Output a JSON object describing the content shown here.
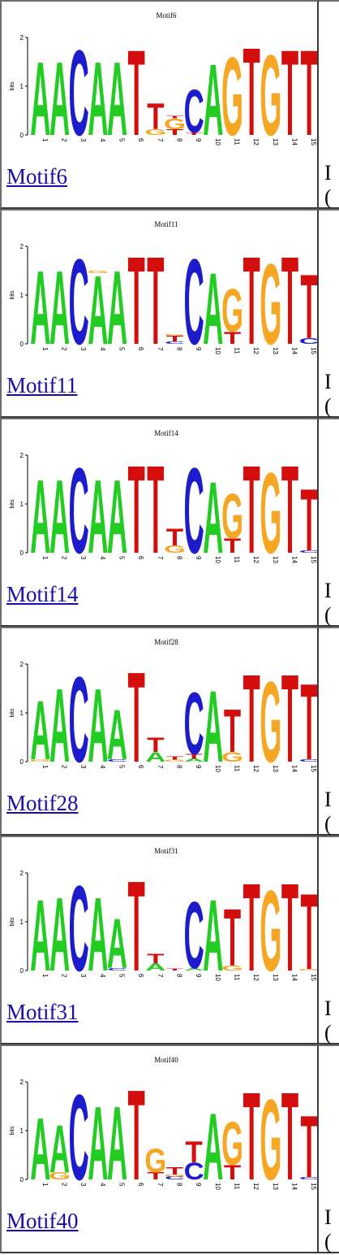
{
  "rows": [
    {
      "id": "motif6",
      "logo_title": "Motif6",
      "link_text": "Motif6",
      "letters": [
        [
          {
            "b": "A",
            "h": 1.55
          }
        ],
        [
          {
            "b": "A",
            "h": 1.55
          }
        ],
        [
          {
            "b": "C",
            "h": 1.8
          }
        ],
        [
          {
            "b": "A",
            "h": 1.55
          }
        ],
        [
          {
            "b": "A",
            "h": 1.55
          }
        ],
        [
          {
            "b": "T",
            "h": 1.8
          }
        ],
        [
          {
            "b": "G",
            "h": 0.12
          },
          {
            "b": "T",
            "h": 0.55
          }
        ],
        [
          {
            "b": "T",
            "h": 0.12
          },
          {
            "b": "G",
            "h": 0.22
          },
          {
            "b": "T",
            "h": 0.05
          }
        ],
        [
          {
            "b": "T",
            "h": 0.05
          },
          {
            "b": "C",
            "h": 0.9
          }
        ],
        [
          {
            "b": "A",
            "h": 1.5
          }
        ],
        [
          {
            "b": "G",
            "h": 1.65
          }
        ],
        [
          {
            "b": "T",
            "h": 1.85
          }
        ],
        [
          {
            "b": "G",
            "h": 1.7
          }
        ],
        [
          {
            "b": "T",
            "h": 1.8
          }
        ],
        [
          {
            "b": "T",
            "h": 1.8
          }
        ]
      ]
    },
    {
      "id": "motif11",
      "logo_title": "Motif11",
      "link_text": "Motif11",
      "letters": [
        [
          {
            "b": "A",
            "h": 1.55
          }
        ],
        [
          {
            "b": "A",
            "h": 1.55
          }
        ],
        [
          {
            "b": "C",
            "h": 1.8
          }
        ],
        [
          {
            "b": "A",
            "h": 1.45
          },
          {
            "b": "G",
            "h": 0.05
          }
        ],
        [
          {
            "b": "A",
            "h": 1.55
          }
        ],
        [
          {
            "b": "T",
            "h": 1.85
          }
        ],
        [
          {
            "b": "T",
            "h": 1.85
          }
        ],
        [
          {
            "b": "C",
            "h": 0.05
          },
          {
            "b": "T",
            "h": 0.12
          },
          {
            "b": "G",
            "h": 0.03
          }
        ],
        [
          {
            "b": "C",
            "h": 1.8
          }
        ],
        [
          {
            "b": "A",
            "h": 1.5
          }
        ],
        [
          {
            "b": "T",
            "h": 0.25
          },
          {
            "b": "G",
            "h": 0.9
          }
        ],
        [
          {
            "b": "T",
            "h": 1.85
          }
        ],
        [
          {
            "b": "G",
            "h": 1.7
          }
        ],
        [
          {
            "b": "T",
            "h": 1.85
          }
        ],
        [
          {
            "b": "C",
            "h": 0.12
          },
          {
            "b": "T",
            "h": 1.35
          }
        ]
      ]
    },
    {
      "id": "motif14",
      "logo_title": "Motif14",
      "link_text": "Motif14",
      "letters": [
        [
          {
            "b": "A",
            "h": 1.55
          }
        ],
        [
          {
            "b": "A",
            "h": 1.55
          }
        ],
        [
          {
            "b": "C",
            "h": 1.8
          }
        ],
        [
          {
            "b": "A",
            "h": 1.55
          }
        ],
        [
          {
            "b": "A",
            "h": 1.55
          }
        ],
        [
          {
            "b": "T",
            "h": 1.85
          }
        ],
        [
          {
            "b": "T",
            "h": 1.85
          }
        ],
        [
          {
            "b": "G",
            "h": 0.15
          },
          {
            "b": "T",
            "h": 0.35
          }
        ],
        [
          {
            "b": "C",
            "h": 1.8
          }
        ],
        [
          {
            "b": "A",
            "h": 1.5
          }
        ],
        [
          {
            "b": "T",
            "h": 0.3
          },
          {
            "b": "G",
            "h": 0.95
          }
        ],
        [
          {
            "b": "T",
            "h": 1.85
          }
        ],
        [
          {
            "b": "G",
            "h": 1.7
          }
        ],
        [
          {
            "b": "T",
            "h": 1.85
          }
        ],
        [
          {
            "b": "C",
            "h": 0.05
          },
          {
            "b": "T",
            "h": 1.3
          }
        ]
      ]
    },
    {
      "id": "motif28",
      "logo_title": "Motif28",
      "link_text": "Motif28",
      "letters": [
        [
          {
            "b": "G",
            "h": 0.04
          },
          {
            "b": "A",
            "h": 1.25
          }
        ],
        [
          {
            "b": "A",
            "h": 1.55
          }
        ],
        [
          {
            "b": "C",
            "h": 1.8
          }
        ],
        [
          {
            "b": "A",
            "h": 1.55
          }
        ],
        [
          {
            "b": "C",
            "h": 0.05
          },
          {
            "b": "A",
            "h": 1.05
          }
        ],
        [
          {
            "b": "T",
            "h": 1.9
          }
        ],
        [
          {
            "b": "A",
            "h": 0.2
          },
          {
            "b": "T",
            "h": 0.3
          }
        ],
        [
          {
            "b": "G",
            "h": 0.04
          },
          {
            "b": "T",
            "h": 0.06
          }
        ],
        [
          {
            "b": "A",
            "h": 0.06
          },
          {
            "b": "T",
            "h": 0.1
          },
          {
            "b": "C",
            "h": 1.3
          }
        ],
        [
          {
            "b": "A",
            "h": 1.5
          }
        ],
        [
          {
            "b": "G",
            "h": 0.2
          },
          {
            "b": "T",
            "h": 0.9
          }
        ],
        [
          {
            "b": "T",
            "h": 1.85
          }
        ],
        [
          {
            "b": "G",
            "h": 1.7
          }
        ],
        [
          {
            "b": "T",
            "h": 1.85
          }
        ],
        [
          {
            "b": "C",
            "h": 0.05
          },
          {
            "b": "T",
            "h": 1.6
          }
        ]
      ]
    },
    {
      "id": "motif31",
      "logo_title": "Motif31",
      "link_text": "Motif31",
      "letters": [
        [
          {
            "b": "A",
            "h": 1.5
          }
        ],
        [
          {
            "b": "A",
            "h": 1.55
          }
        ],
        [
          {
            "b": "C",
            "h": 1.8
          }
        ],
        [
          {
            "b": "A",
            "h": 1.55
          }
        ],
        [
          {
            "b": "C",
            "h": 0.05
          },
          {
            "b": "A",
            "h": 1.05
          }
        ],
        [
          {
            "b": "T",
            "h": 1.9
          }
        ],
        [
          {
            "b": "A",
            "h": 0.15
          },
          {
            "b": "T",
            "h": 0.2
          }
        ],
        [
          {
            "b": "T",
            "h": 0.04
          }
        ],
        [
          {
            "b": "A",
            "h": 0.05
          },
          {
            "b": "C",
            "h": 1.4
          }
        ],
        [
          {
            "b": "A",
            "h": 1.5
          }
        ],
        [
          {
            "b": "G",
            "h": 0.1
          },
          {
            "b": "T",
            "h": 1.2
          }
        ],
        [
          {
            "b": "T",
            "h": 1.85
          }
        ],
        [
          {
            "b": "G",
            "h": 1.7
          }
        ],
        [
          {
            "b": "T",
            "h": 1.85
          }
        ],
        [
          {
            "b": "G",
            "h": 0.03
          },
          {
            "b": "T",
            "h": 1.6
          }
        ]
      ]
    },
    {
      "id": "motif40",
      "logo_title": "Motif40",
      "link_text": "Motif40",
      "letters": [
        [
          {
            "b": "A",
            "h": 1.3
          }
        ],
        [
          {
            "b": "G",
            "h": 0.15
          },
          {
            "b": "A",
            "h": 1.0
          }
        ],
        [
          {
            "b": "C",
            "h": 1.8
          }
        ],
        [
          {
            "b": "A",
            "h": 1.55
          }
        ],
        [
          {
            "b": "A",
            "h": 1.55
          }
        ],
        [
          {
            "b": "T",
            "h": 1.9
          }
        ],
        [
          {
            "b": "T",
            "h": 0.15
          },
          {
            "b": "G",
            "h": 0.5
          }
        ],
        [
          {
            "b": "C",
            "h": 0.06
          },
          {
            "b": "G",
            "h": 0.04
          },
          {
            "b": "T",
            "h": 0.15
          }
        ],
        [
          {
            "b": "C",
            "h": 0.35
          },
          {
            "b": "T",
            "h": 0.45
          }
        ],
        [
          {
            "b": "A",
            "h": 1.4
          }
        ],
        [
          {
            "b": "T",
            "h": 0.3
          },
          {
            "b": "G",
            "h": 0.9
          }
        ],
        [
          {
            "b": "T",
            "h": 1.85
          }
        ],
        [
          {
            "b": "G",
            "h": 1.7
          }
        ],
        [
          {
            "b": "T",
            "h": 1.85
          }
        ],
        [
          {
            "b": "C",
            "h": 0.05
          },
          {
            "b": "T",
            "h": 1.3
          }
        ]
      ]
    }
  ],
  "axis": {
    "ylabel": "bits",
    "yticks": [
      "0",
      "1",
      "2"
    ],
    "positions": [
      "1",
      "2",
      "3",
      "4",
      "5",
      "6",
      "7",
      "8",
      "9",
      "10",
      "11",
      "12",
      "13",
      "14",
      "15"
    ]
  },
  "colors": {
    "A": "#22cc22",
    "C": "#1c1ccc",
    "G": "#f5a623",
    "T": "#d40d0d"
  },
  "right_clip": {
    "top_char": "I",
    "bottom_char": "("
  }
}
